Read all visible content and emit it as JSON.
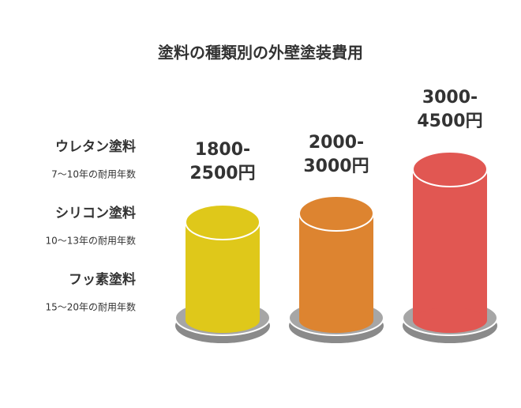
{
  "title": "塗料の種類別の外壁塗装費用",
  "items": [
    {
      "name": "ウレタン塗料",
      "lifespan": "7～10年の耐用年数",
      "price": [
        "1800-",
        "2500円"
      ]
    },
    {
      "name": "シリコン塗料",
      "lifespan": "10～13年の耐用年数",
      "price": [
        "2000-",
        "3000円"
      ]
    },
    {
      "name": "フッ素塗料",
      "lifespan": "15～20年の耐用年数",
      "price": [
        "3000-",
        "4500円"
      ]
    }
  ]
}
